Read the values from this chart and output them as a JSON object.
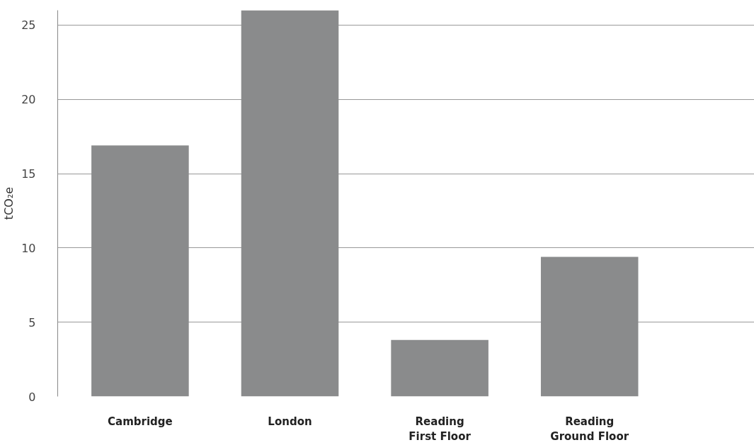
{
  "chart_data": {
    "type": "bar",
    "ylabel": "tCO₂e",
    "categories": [
      "Cambridge",
      "London",
      "Reading\nFirst Floor",
      "Reading\nGround Floor"
    ],
    "values": [
      16.9,
      26.0,
      3.8,
      9.4
    ],
    "color": "#8a8b8c",
    "ylim": [
      0,
      26
    ],
    "yticks": [
      0,
      5,
      10,
      15,
      20,
      25
    ],
    "grid": "y"
  }
}
